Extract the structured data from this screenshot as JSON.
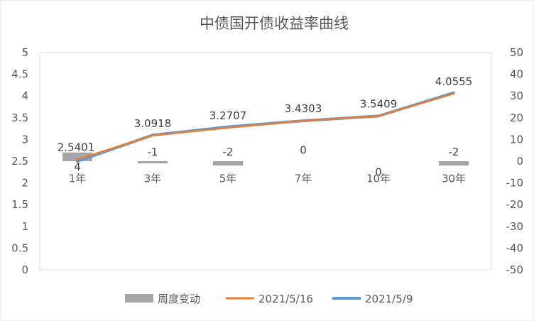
{
  "chart_data": {
    "type": "bar+line",
    "title": "中债国开债收益率曲线",
    "categories": [
      "1年",
      "3年",
      "5年",
      "7年",
      "10年",
      "30年"
    ],
    "y_left": {
      "range": [
        0,
        5
      ],
      "step": 0.5,
      "ticks": [
        "0",
        "0.5",
        "1",
        "1.5",
        "2",
        "2.5",
        "3",
        "3.5",
        "4",
        "4.5",
        "5"
      ]
    },
    "y_right": {
      "range": [
        -50,
        50
      ],
      "step": 10,
      "ticks": [
        "-50",
        "-40",
        "-30",
        "-20",
        "-10",
        "0",
        "10",
        "20",
        "30",
        "40",
        "50"
      ]
    },
    "series": [
      {
        "name": "周度变动",
        "kind": "bar",
        "axis": "right",
        "color": "#a5a5a5",
        "values": [
          4,
          -1,
          -2,
          0,
          0,
          -2
        ],
        "labels": [
          "4",
          "-1",
          "-2",
          "0",
          "0",
          "-2"
        ]
      },
      {
        "name": "2021/5/16",
        "kind": "line",
        "axis": "left",
        "color": "#ed7d31",
        "values": [
          2.5401,
          3.0918,
          3.2707,
          3.4303,
          3.5409,
          4.0555
        ],
        "labels": [
          "2.5401",
          "3.0918",
          "3.2707",
          "3.4303",
          "3.5409",
          "4.0555"
        ]
      },
      {
        "name": "2021/5/9",
        "kind": "line",
        "axis": "left",
        "color": "#5b9bd5",
        "values": [
          2.5,
          3.1,
          3.29,
          3.43,
          3.54,
          4.075
        ]
      }
    ],
    "grid": false,
    "legend": "bottom"
  }
}
